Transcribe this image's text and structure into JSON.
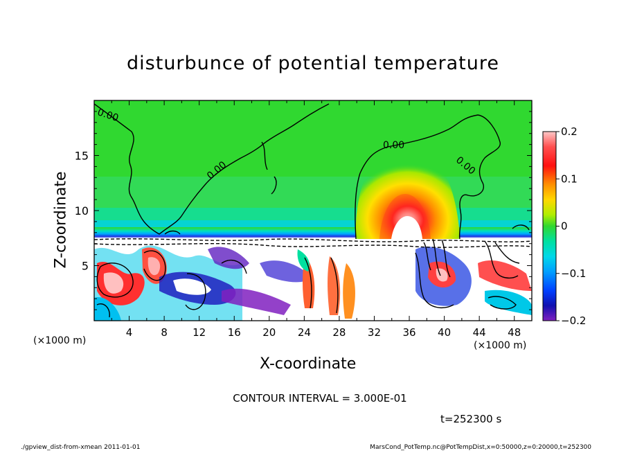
{
  "chart_data": {
    "type": "heatmap",
    "title": "disturbunce of potential temperature",
    "xlabel": "X-coordinate",
    "ylabel": "Z-coordinate",
    "x_unit_label": "(×1000 m)",
    "xlim": [
      0,
      50
    ],
    "ylim": [
      0,
      20
    ],
    "x_ticks": [
      "4",
      "8",
      "12",
      "16",
      "20",
      "24",
      "28",
      "32",
      "36",
      "40",
      "44",
      "48"
    ],
    "y_ticks": [
      "5",
      "10",
      "15"
    ],
    "colorbar": {
      "range": [
        -0.2,
        0.2
      ],
      "ticks": [
        "0.2",
        "0.1",
        "0",
        "−0.1",
        "−0.2"
      ]
    },
    "contour_labels": [
      "0.00",
      "0.00",
      "0.00",
      "0.00"
    ],
    "contour_interval": "CONTOUR INTERVAL = 3.000E-01",
    "time": "t=252300 s"
  },
  "footer": {
    "left": "./gpview_dist-from-xmean  2011-01-01",
    "right": "MarsCond_PotTemp.nc@PotTempDist,x=0:50000,z=0:20000,t=252300"
  }
}
